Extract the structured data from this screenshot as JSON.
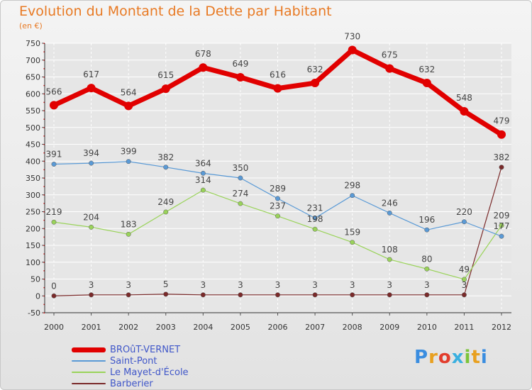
{
  "header": {
    "title": "Evolution du Montant de la Dette par Habitant",
    "subtitle": "(en €)"
  },
  "logo": {
    "text": "Proxiti",
    "letter_colors": [
      "#3a8de0",
      "#e8a020",
      "#e23d2d",
      "#3ab0e0",
      "#7cc43a",
      "#e8a020",
      "#3a8de0"
    ]
  },
  "colors": {
    "title": "#e87a24",
    "legend_text": "#4057c9",
    "axis": "#333333",
    "grid": "#ffffff"
  },
  "chart_data": {
    "type": "line",
    "title": "Evolution du Montant de la Dette par Habitant",
    "ylabel": "(en €)",
    "x": [
      "2000",
      "2001",
      "2002",
      "2003",
      "2004",
      "2005",
      "2006",
      "2007",
      "2008",
      "2009",
      "2010",
      "2011",
      "2012"
    ],
    "ylim": [
      -50,
      750
    ],
    "yticks": [
      -50,
      0,
      50,
      100,
      150,
      200,
      250,
      300,
      350,
      400,
      450,
      500,
      550,
      600,
      650,
      700,
      750
    ],
    "grid": true,
    "legend_position": "bottom-left",
    "series": [
      {
        "name": "BROûT-VERNET",
        "color": "#e10000",
        "values": [
          566,
          617,
          564,
          615,
          678,
          649,
          616,
          632,
          730,
          675,
          632,
          548,
          479
        ],
        "labels": [
          "566",
          "617",
          "564",
          "615",
          "678",
          "649",
          "616",
          "632",
          "730",
          "675",
          "632",
          "548",
          "479"
        ]
      },
      {
        "name": "Saint-Pont",
        "color": "#5a9ad6",
        "values": [
          391,
          394,
          399,
          382,
          364,
          350,
          289,
          231,
          298,
          246,
          196,
          220,
          177
        ],
        "labels": [
          "391",
          "394",
          "399",
          "382",
          "364",
          "350",
          "289",
          "231",
          "298",
          "246",
          "196",
          "220",
          "177"
        ]
      },
      {
        "name": "Le Mayet-d'École",
        "color": "#9ad35a",
        "values": [
          219,
          204,
          183,
          249,
          314,
          274,
          237,
          198,
          159,
          108,
          80,
          49,
          209
        ],
        "labels": [
          "219",
          "204",
          "183",
          "249",
          "314",
          "274",
          "237",
          "198",
          "159",
          "108",
          "80",
          "49",
          "209"
        ]
      },
      {
        "name": "Barberier",
        "color": "#7a2a2a",
        "values": [
          0,
          3,
          3,
          5,
          3,
          3,
          3,
          3,
          3,
          3,
          3,
          3,
          382
        ],
        "labels": [
          "0",
          "3",
          "3",
          "5",
          "3",
          "3",
          "3",
          "3",
          "3",
          "3",
          "3",
          "3",
          "382"
        ]
      }
    ]
  }
}
